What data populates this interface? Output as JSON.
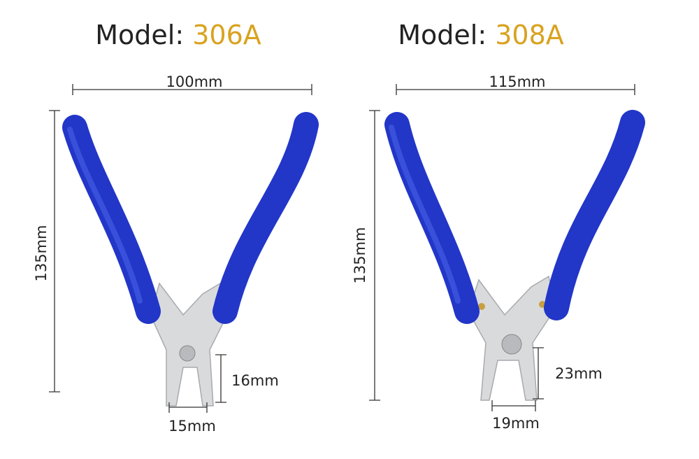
{
  "products": [
    {
      "label": "Model:",
      "model": "306A",
      "width": "100mm",
      "height": "135mm",
      "jaw_length": "16mm",
      "jaw_width": "15mm"
    },
    {
      "label": "Model:",
      "model": "308A",
      "width": "115mm",
      "height": "135mm",
      "jaw_length": "23mm",
      "jaw_width": "19mm"
    }
  ]
}
